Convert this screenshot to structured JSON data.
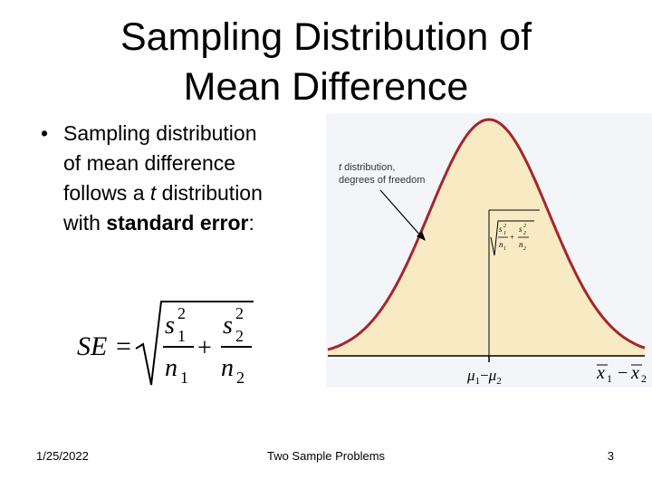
{
  "title": [
    "Sampling Distribution of",
    "Mean Difference"
  ],
  "bullet": [
    [
      "Sampling distribution"
    ],
    [
      "of mean difference"
    ],
    [
      "follows a ",
      "t",
      " distribution"
    ],
    [
      "with ",
      "standard error",
      ":"
    ]
  ],
  "formula": {
    "lhs": "SE",
    "eq": "=",
    "plus": "+",
    "term1": {
      "num": "s",
      "num_sup": "2",
      "num_sub": "1",
      "den": "n",
      "den_sub": "1"
    },
    "term2": {
      "num": "s",
      "num_sup": "2",
      "num_sub": "2",
      "den": "n",
      "den_sub": "2"
    }
  },
  "figure": {
    "label": [
      [
        "t",
        " distribution,"
      ],
      [
        "degrees of freedom"
      ]
    ],
    "se": {
      "plus": "+",
      "term1": {
        "num": "s",
        "num_sup": "2",
        "num_sub": "1",
        "den": "n",
        "den_sub": "1"
      },
      "term2": {
        "num": "s",
        "num_sup": "2",
        "num_sub": "2",
        "den": "n",
        "den_sub": "2"
      }
    },
    "center_label": {
      "mu": "μ",
      "sub1": "1",
      "minus": "−",
      "sub2": "2"
    },
    "x_label": {
      "x": "x",
      "sub1": "1",
      "minus": "−",
      "sub2": "2"
    }
  },
  "footer": {
    "date": "1/25/2022",
    "center": "Two Sample Problems",
    "page": "3"
  }
}
